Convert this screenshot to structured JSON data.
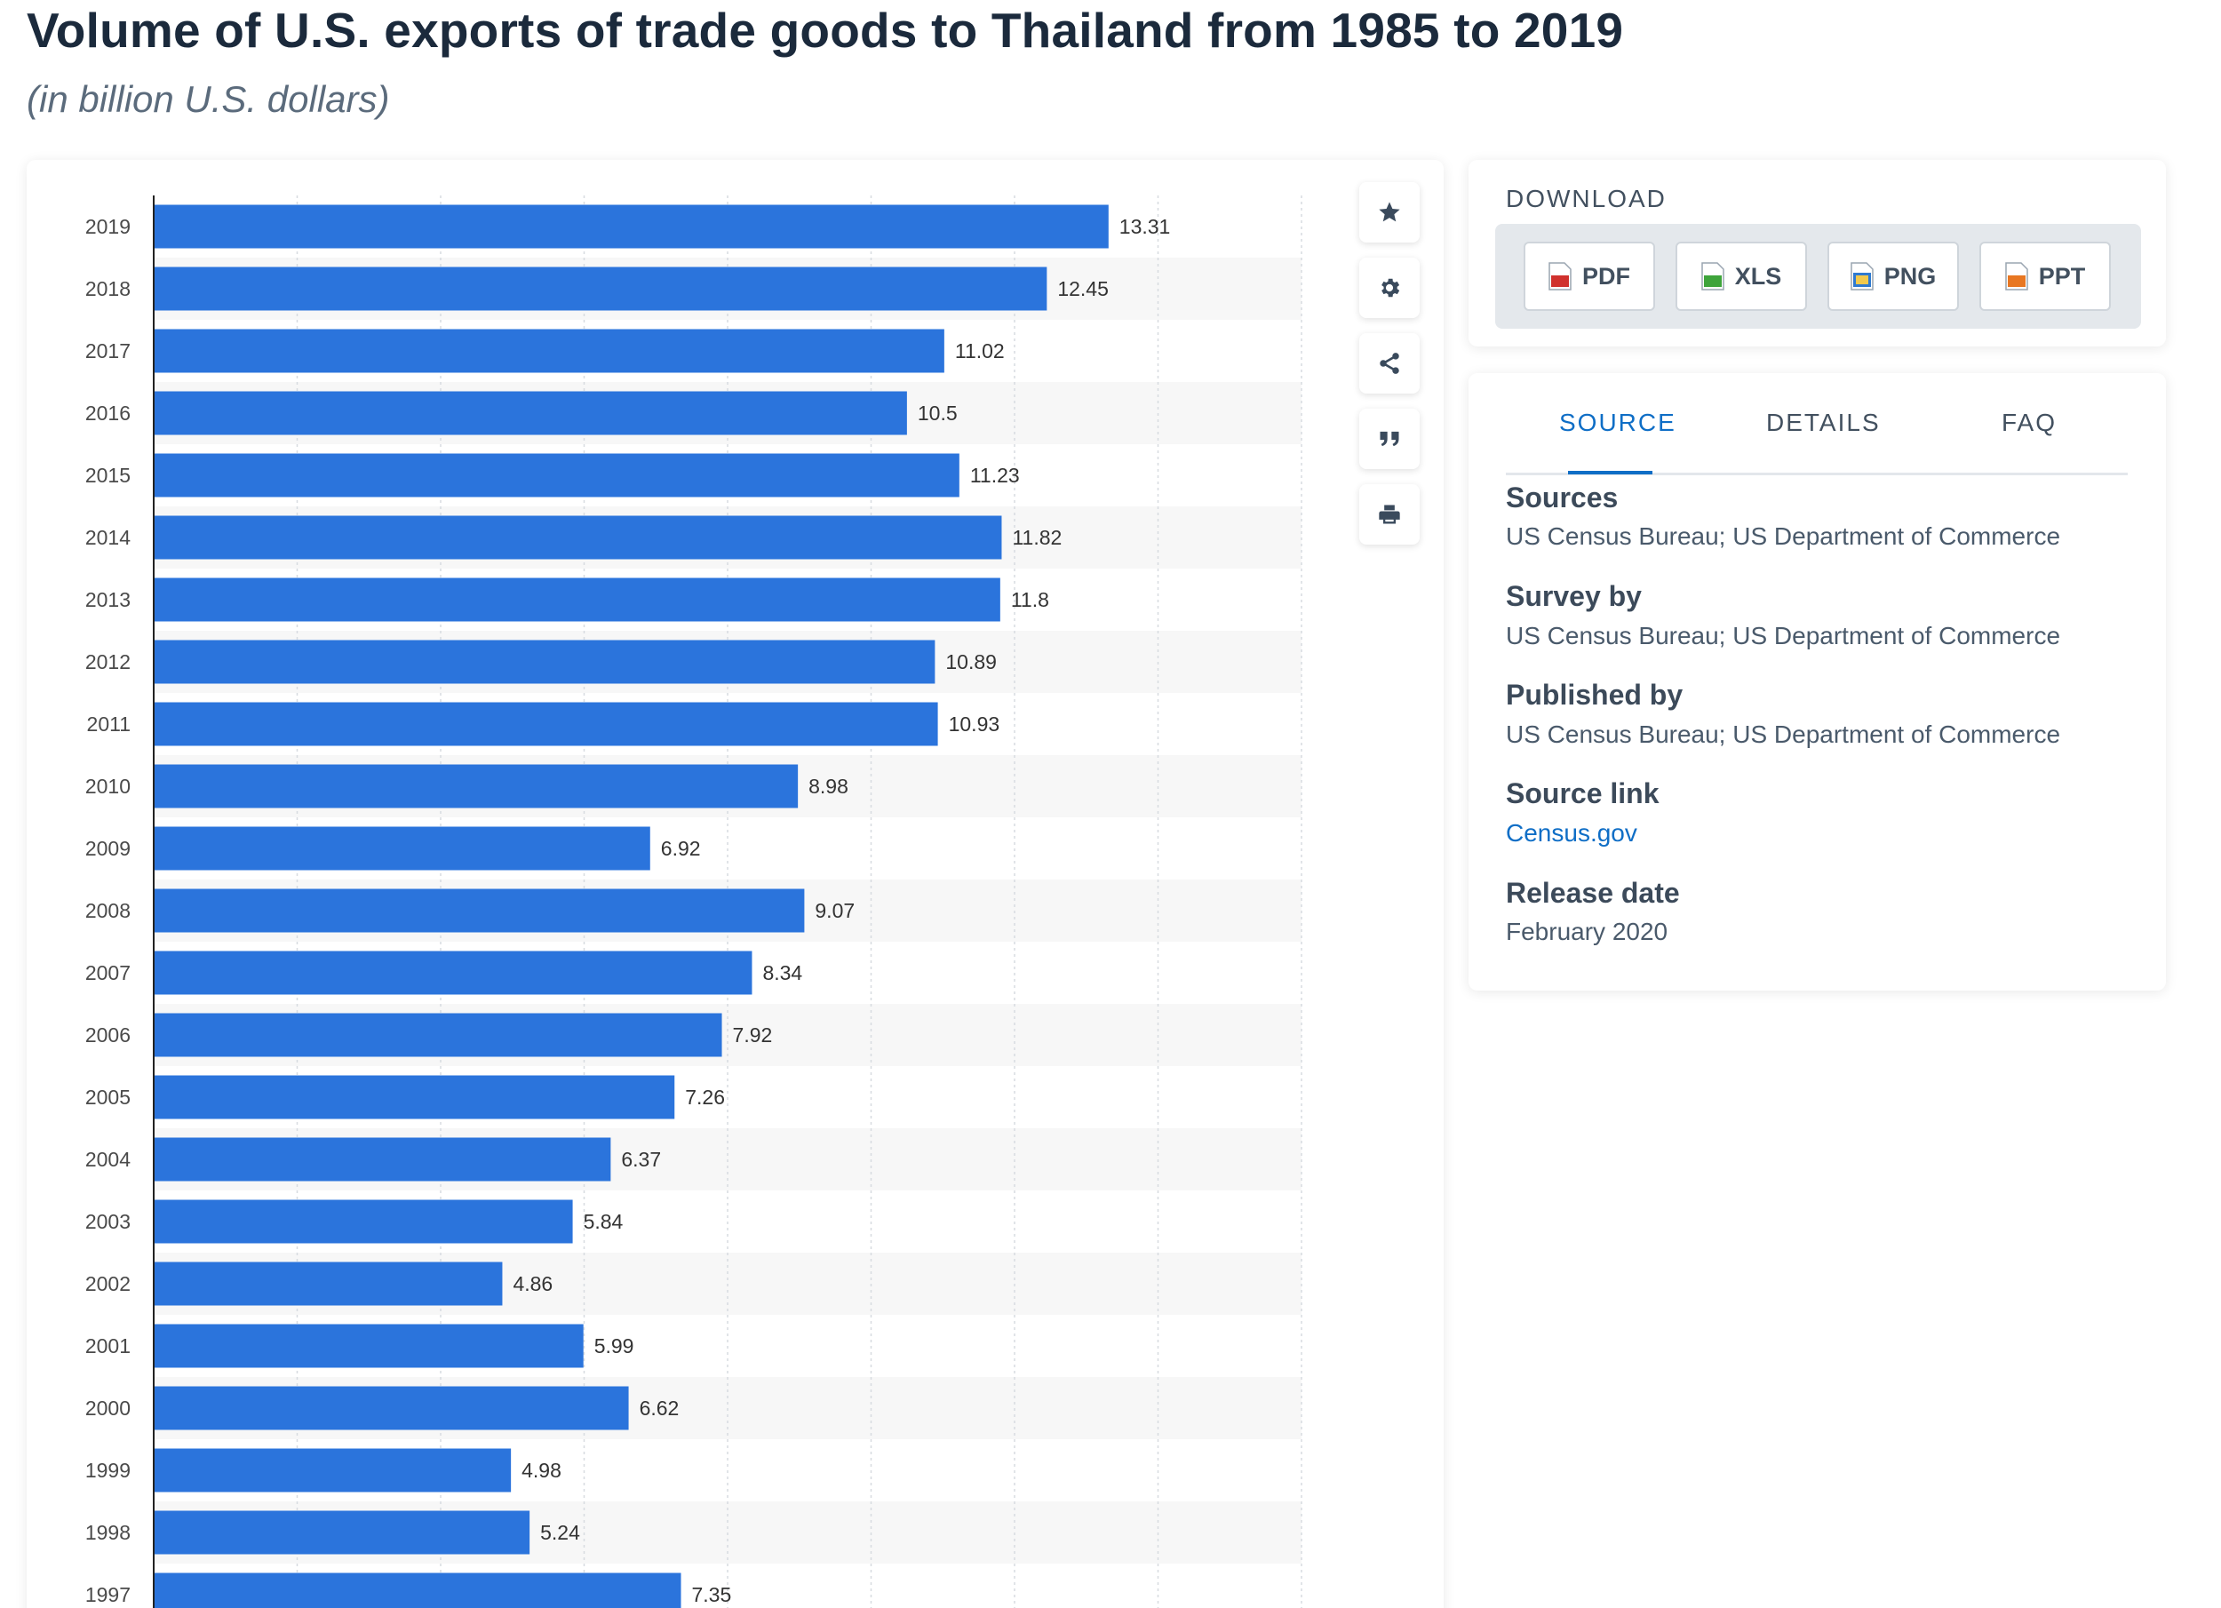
{
  "page": {
    "title": "Volume of U.S. exports of trade goods to Thailand from 1985 to 2019",
    "subtitle": "(in billion U.S. dollars)"
  },
  "toolbar": {
    "icons": [
      "star-icon",
      "gear-icon",
      "share-icon",
      "quote-icon",
      "print-icon"
    ]
  },
  "download": {
    "title": "DOWNLOAD",
    "buttons": [
      {
        "label": "PDF",
        "icon": "pdf-file-icon",
        "color": "#d0312d"
      },
      {
        "label": "XLS",
        "icon": "xls-file-icon",
        "color": "#3ea43b"
      },
      {
        "label": "PNG",
        "icon": "png-file-icon",
        "color": "#2f7ad0"
      },
      {
        "label": "PPT",
        "icon": "ppt-file-icon",
        "color": "#e87722"
      }
    ]
  },
  "source_panel": {
    "tabs": [
      "SOURCE",
      "DETAILS",
      "FAQ"
    ],
    "active_tab": "SOURCE",
    "sources_label": "Sources",
    "sources_value": "US Census Bureau; US Department of Commerce",
    "survey_label": "Survey by",
    "survey_value": "US Census Bureau; US Department of Commerce",
    "published_label": "Published by",
    "published_value": "US Census Bureau; US Department of Commerce",
    "link_label": "Source link",
    "link_value": "Census.gov",
    "release_label": "Release date",
    "release_value": "February 2020"
  },
  "chart_data": {
    "type": "bar",
    "orientation": "horizontal",
    "title": "Volume of U.S. exports of trade goods to Thailand from 1985 to 2019",
    "subtitle": "(in billion U.S. dollars)",
    "categories": [
      "2019",
      "2018",
      "2017",
      "2016",
      "2015",
      "2014",
      "2013",
      "2012",
      "2011",
      "2010",
      "2009",
      "2008",
      "2007",
      "2006",
      "2005",
      "2004",
      "2003",
      "2002",
      "2001",
      "2000",
      "1999",
      "1998",
      "1997"
    ],
    "values": [
      13.31,
      12.45,
      11.02,
      10.5,
      11.23,
      11.82,
      11.8,
      10.89,
      10.93,
      8.98,
      6.92,
      9.07,
      8.34,
      7.92,
      7.26,
      6.37,
      5.84,
      4.86,
      5.99,
      6.62,
      4.98,
      5.24,
      7.35
    ],
    "xlim": [
      0,
      16
    ],
    "grid": true,
    "bar_color": "#2b74dc",
    "data_labels": true
  }
}
